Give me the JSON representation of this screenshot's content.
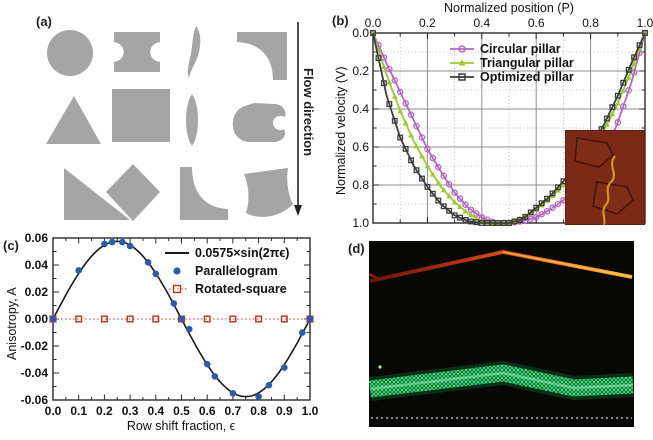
{
  "panel_a": {
    "label": "(a)",
    "flow_label": "Flow direction",
    "shape_color": "#a5a5a5",
    "shape_names": [
      "circle",
      "i-beam",
      "curved-blade",
      "concave-corner",
      "triangle",
      "square",
      "lens",
      "notched-blob",
      "right-triangle",
      "diamond",
      "concave-l",
      "curved-quad"
    ]
  },
  "panel_b": {
    "label": "(b)"
  },
  "panel_c": {
    "label": "(c)"
  },
  "panel_d": {
    "label": "(d)"
  },
  "chart_data": [
    {
      "id": "b",
      "type": "line",
      "xlabel": "Normalized position (P)",
      "ylabel": "Normalized velocity (V)",
      "xlim": [
        0,
        1
      ],
      "ylim": [
        0,
        1
      ],
      "y_inverted": true,
      "grid": "major solid 0.2, minor dotted 0.1",
      "legend_position": "top-center-inside",
      "xticks": [
        "0.0",
        "0.2",
        "0.4",
        "0.6",
        "0.8",
        "1.0"
      ],
      "yticks": [
        "0.0",
        "0.2",
        "0.4",
        "0.6",
        "0.8",
        "1.0"
      ],
      "x": [
        0,
        0.05,
        0.1,
        0.15,
        0.2,
        0.25,
        0.3,
        0.35,
        0.4,
        0.45,
        0.5,
        0.55,
        0.6,
        0.65,
        0.7,
        0.75,
        0.8,
        0.85,
        0.9,
        0.95,
        1.0
      ],
      "series": [
        {
          "name": "Circular pillar",
          "color": "#b465c6",
          "marker": "circle",
          "values": [
            0.0,
            0.16,
            0.31,
            0.46,
            0.61,
            0.73,
            0.84,
            0.92,
            0.97,
            1.0,
            1.0,
            0.99,
            0.97,
            0.93,
            0.88,
            0.83,
            0.76,
            0.64,
            0.47,
            0.26,
            0.0
          ]
        },
        {
          "name": "Triangular pillar",
          "color": "#9fc832",
          "marker": "triangle",
          "values": [
            0.0,
            0.22,
            0.41,
            0.57,
            0.7,
            0.81,
            0.89,
            0.95,
            0.99,
            1.0,
            1.0,
            0.97,
            0.93,
            0.87,
            0.8,
            0.72,
            0.63,
            0.51,
            0.37,
            0.2,
            0.0
          ]
        },
        {
          "name": "Optimized pillar",
          "color": "#3c3c3c",
          "marker": "square",
          "values": [
            0.0,
            0.33,
            0.55,
            0.7,
            0.81,
            0.9,
            0.96,
            0.99,
            1.0,
            1.0,
            1.0,
            0.98,
            0.92,
            0.86,
            0.78,
            0.7,
            0.61,
            0.48,
            0.33,
            0.16,
            0.0
          ]
        }
      ],
      "inset": "dark red micrograph of two optimized pillar outlines with yellow flow trace"
    },
    {
      "id": "c",
      "type": "scatter",
      "xlabel": "Row shift fraction, ϵ",
      "ylabel": "Anisotropy, A",
      "xlim": [
        0,
        1
      ],
      "ylim": [
        -0.06,
        0.06
      ],
      "grid": "off",
      "legend_position": "top-right-inside",
      "xticks": [
        "0.0",
        "0.1",
        "0.2",
        "0.3",
        "0.4",
        "0.5",
        "0.6",
        "0.7",
        "0.8",
        "0.9",
        "1.0"
      ],
      "yticks": [
        "0.06",
        "0.04",
        "0.02",
        "0.00",
        "-0.02",
        "-0.04",
        "-0.06"
      ],
      "curve": {
        "name": "0.0575×sin(2πϵ)",
        "amplitude": 0.0575,
        "color": "#1a1a1a"
      },
      "series": [
        {
          "name": "Parallelogram",
          "color": "#2d5ba9",
          "marker": "filled-circle",
          "points": [
            [
              0.0,
              0.0
            ],
            [
              0.1,
              0.036
            ],
            [
              0.2,
              0.0555
            ],
            [
              0.23,
              0.057
            ],
            [
              0.27,
              0.057
            ],
            [
              0.3,
              0.054
            ],
            [
              0.37,
              0.042
            ],
            [
              0.4,
              0.0335
            ],
            [
              0.47,
              0.0115
            ],
            [
              0.5,
              0.0
            ],
            [
              0.53,
              -0.0075
            ],
            [
              0.6,
              -0.0335
            ],
            [
              0.63,
              -0.0425
            ],
            [
              0.7,
              -0.055
            ],
            [
              0.8,
              -0.0575
            ],
            [
              0.84,
              -0.049
            ],
            [
              0.9,
              -0.036
            ],
            [
              0.97,
              -0.01
            ],
            [
              1.0,
              0.0
            ]
          ]
        },
        {
          "name": "Rotated-square",
          "color": "#c23a2e",
          "marker": "open-square",
          "line": "dotted",
          "points": [
            [
              0.0,
              0
            ],
            [
              0.1,
              0
            ],
            [
              0.2,
              0
            ],
            [
              0.3,
              0
            ],
            [
              0.4,
              0
            ],
            [
              0.5,
              0
            ],
            [
              0.6,
              0
            ],
            [
              0.7,
              0
            ],
            [
              0.8,
              0
            ],
            [
              0.9,
              0
            ],
            [
              1.0,
              0
            ]
          ]
        }
      ]
    }
  ]
}
